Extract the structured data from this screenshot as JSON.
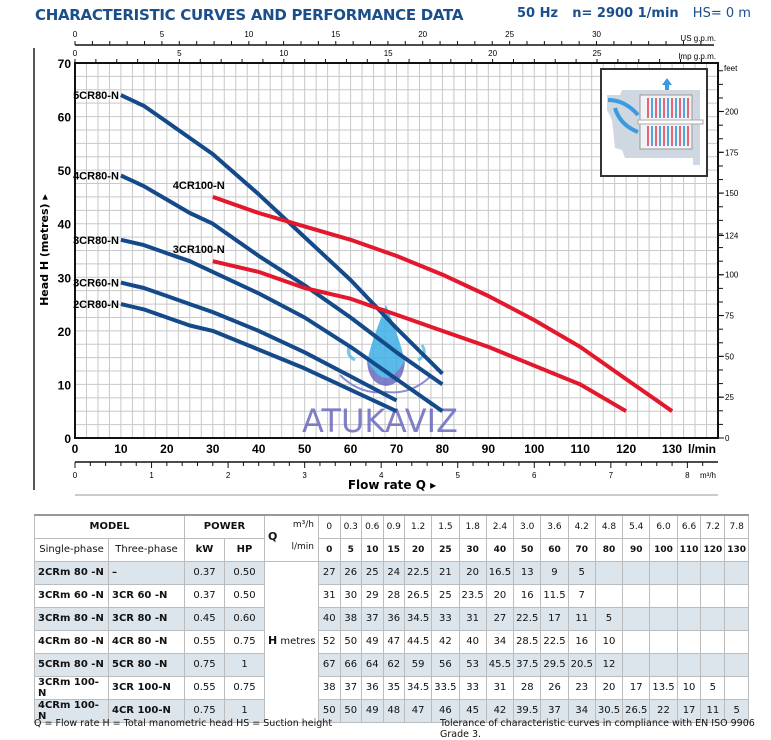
{
  "header": {
    "title": "CHARACTERISTIC CURVES AND PERFORMANCE DATA",
    "frequency": "50 Hz",
    "speed": "n= 2900  1/min",
    "suction": "HS= 0 m"
  },
  "chart_data": {
    "type": "line",
    "title": "CHARACTERISTIC CURVES AND PERFORMANCE DATA",
    "xlabel": "Flow rate Q",
    "ylabel": "Head H (metres)",
    "xlim": [
      0,
      140
    ],
    "ylim": [
      0,
      70
    ],
    "grid": true,
    "x_unit": "l/min",
    "x_ticks": [
      0,
      10,
      20,
      30,
      40,
      50,
      60,
      70,
      80,
      90,
      100,
      110,
      120,
      130
    ],
    "y_ticks": [
      0,
      10,
      20,
      30,
      40,
      50,
      60,
      70
    ],
    "secondary_axes": {
      "us_gpm": {
        "label": "US g.p.m.",
        "ticks": [
          0,
          5,
          10,
          15,
          20,
          25,
          30
        ]
      },
      "imp_gpm": {
        "label": "Imp g.p.m.",
        "ticks": [
          0,
          5,
          10,
          15,
          20,
          25
        ]
      },
      "m3h": {
        "label": "m³/h",
        "ticks": [
          0,
          1,
          2,
          3,
          4,
          5,
          6,
          7,
          8
        ]
      },
      "feet": {
        "label": "feet",
        "ticks": [
          0,
          25,
          50,
          75,
          100,
          124,
          150,
          175,
          200
        ]
      }
    },
    "series": [
      {
        "name": "5CR80-N",
        "color": "#154a8a",
        "x": [
          10,
          15,
          20,
          25,
          30,
          40,
          50,
          60,
          70,
          80
        ],
        "y": [
          64,
          62,
          59,
          56,
          53,
          45.5,
          37.5,
          29.5,
          20.5,
          12
        ]
      },
      {
        "name": "4CR80-N",
        "color": "#154a8a",
        "x": [
          10,
          15,
          20,
          25,
          30,
          40,
          50,
          60,
          70,
          80
        ],
        "y": [
          49,
          47,
          44.5,
          42,
          40,
          34,
          28.5,
          22.5,
          16,
          10
        ]
      },
      {
        "name": "3CR80-N",
        "color": "#154a8a",
        "x": [
          10,
          15,
          20,
          25,
          30,
          40,
          50,
          60,
          70,
          80
        ],
        "y": [
          37,
          36,
          34.5,
          33,
          31,
          27,
          22.5,
          17,
          11,
          5
        ]
      },
      {
        "name": "3CR60-N",
        "color": "#154a8a",
        "x": [
          10,
          15,
          20,
          25,
          30,
          40,
          50,
          60,
          70
        ],
        "y": [
          29,
          28,
          26.5,
          25,
          23.5,
          20,
          16,
          11.5,
          7
        ]
      },
      {
        "name": "2CR80-N",
        "color": "#154a8a",
        "x": [
          10,
          15,
          20,
          25,
          30,
          40,
          50,
          60,
          70
        ],
        "y": [
          25,
          24,
          22.5,
          21,
          20,
          16.5,
          13,
          9,
          5
        ]
      },
      {
        "name": "4CR100-N",
        "color": "#e3182d",
        "x": [
          30,
          40,
          50,
          60,
          70,
          80,
          90,
          100,
          110,
          120,
          130
        ],
        "y": [
          45,
          42,
          39.5,
          37,
          34,
          30.5,
          26.5,
          22,
          17,
          11,
          5
        ]
      },
      {
        "name": "3CR100-N",
        "color": "#e3182d",
        "x": [
          30,
          40,
          50,
          60,
          70,
          80,
          90,
          100,
          110,
          120
        ],
        "y": [
          33,
          31,
          28,
          26,
          23,
          20,
          17,
          13.5,
          10,
          5
        ]
      }
    ]
  },
  "watermark": "ATUKAVİZ",
  "table": {
    "model_header": "MODEL",
    "power_header": "POWER",
    "single_phase": "Single-phase",
    "three_phase": "Three-phase",
    "kw": "kW",
    "hp": "HP",
    "q_label": "Q",
    "m3h_label": "m³/h",
    "lmin_label": "l/min",
    "h_label": "H",
    "metres_label": "metres",
    "m3h": [
      "0",
      "0.3",
      "0.6",
      "0.9",
      "1.2",
      "1.5",
      "1.8",
      "2.4",
      "3.0",
      "3.6",
      "4.2",
      "4.8",
      "5.4",
      "6.0",
      "6.6",
      "7.2",
      "7.8"
    ],
    "lmin": [
      "0",
      "5",
      "10",
      "15",
      "20",
      "25",
      "30",
      "40",
      "50",
      "60",
      "70",
      "80",
      "90",
      "100",
      "110",
      "120",
      "130"
    ],
    "rows": [
      {
        "single": "2CRm 80  -N",
        "three": "–",
        "kw": "0.37",
        "hp": "0.50",
        "h": [
          "27",
          "26",
          "25",
          "24",
          "22.5",
          "21",
          "20",
          "16.5",
          "13",
          "9",
          "5",
          "",
          "",
          "",
          "",
          "",
          ""
        ]
      },
      {
        "single": "3CRm 60  -N",
        "three": "3CR 60  -N",
        "kw": "0.37",
        "hp": "0.50",
        "h": [
          "31",
          "30",
          "29",
          "28",
          "26.5",
          "25",
          "23.5",
          "20",
          "16",
          "11.5",
          "7",
          "",
          "",
          "",
          "",
          "",
          ""
        ]
      },
      {
        "single": "3CRm 80  -N",
        "three": "3CR 80  -N",
        "kw": "0.45",
        "hp": "0.60",
        "h": [
          "40",
          "38",
          "37",
          "36",
          "34.5",
          "33",
          "31",
          "27",
          "22.5",
          "17",
          "11",
          "5",
          "",
          "",
          "",
          "",
          ""
        ]
      },
      {
        "single": "4CRm 80  -N",
        "three": "4CR 80  -N",
        "kw": "0.55",
        "hp": "0.75",
        "h": [
          "52",
          "50",
          "49",
          "47",
          "44.5",
          "42",
          "40",
          "34",
          "28.5",
          "22.5",
          "16",
          "10",
          "",
          "",
          "",
          "",
          ""
        ]
      },
      {
        "single": "5CRm 80  -N",
        "three": "5CR 80  -N",
        "kw": "0.75",
        "hp": "1",
        "h": [
          "67",
          "66",
          "64",
          "62",
          "59",
          "56",
          "53",
          "45.5",
          "37.5",
          "29.5",
          "20.5",
          "12",
          "",
          "",
          "",
          "",
          ""
        ]
      },
      {
        "single": "3CRm 100-N",
        "three": "3CR 100-N",
        "kw": "0.55",
        "hp": "0.75",
        "h": [
          "38",
          "37",
          "36",
          "35",
          "34.5",
          "33.5",
          "33",
          "31",
          "28",
          "26",
          "23",
          "20",
          "17",
          "13.5",
          "10",
          "5",
          ""
        ]
      },
      {
        "single": "4CRm 100-N",
        "three": "4CR 100-N",
        "kw": "0.75",
        "hp": "1",
        "h": [
          "50",
          "50",
          "49",
          "48",
          "47",
          "46",
          "45",
          "42",
          "39.5",
          "37",
          "34",
          "30.5",
          "26.5",
          "22",
          "17",
          "11",
          "5"
        ]
      }
    ]
  },
  "footer": {
    "legend": "Q = Flow rate  H = Total manometric head  HS = Suction height",
    "tolerance": "Tolerance of characteristic curves in compliance with EN ISO 9906 Grade 3."
  }
}
